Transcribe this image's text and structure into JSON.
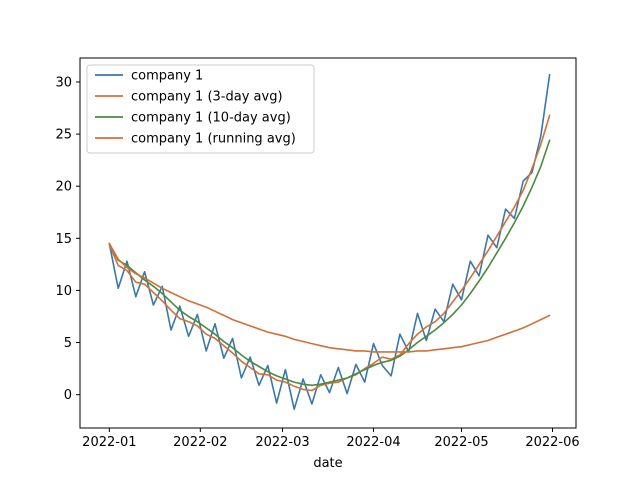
{
  "chart_data": {
    "type": "line",
    "title": "",
    "xlabel": "date",
    "ylabel": "",
    "xlim": [
      "2021-12-22",
      "2022-06-09"
    ],
    "ylim": [
      -3.2,
      32.3
    ],
    "x_ticks": [
      {
        "date": "2022-01-01",
        "label": "2022-01"
      },
      {
        "date": "2022-02-01",
        "label": "2022-02"
      },
      {
        "date": "2022-03-01",
        "label": "2022-03"
      },
      {
        "date": "2022-04-01",
        "label": "2022-04"
      },
      {
        "date": "2022-05-01",
        "label": "2022-05"
      },
      {
        "date": "2022-06-01",
        "label": "2022-06"
      }
    ],
    "y_ticks": [
      0,
      5,
      10,
      15,
      20,
      25,
      30
    ],
    "grid": false,
    "legend_position": "top-left",
    "series": [
      {
        "name": "company 1",
        "color": "#3a78a8",
        "x": [
          "2022-01-01",
          "2022-01-04",
          "2022-01-07",
          "2022-01-10",
          "2022-01-13",
          "2022-01-16",
          "2022-01-19",
          "2022-01-22",
          "2022-01-25",
          "2022-01-28",
          "2022-01-31",
          "2022-02-03",
          "2022-02-06",
          "2022-02-09",
          "2022-02-12",
          "2022-02-15",
          "2022-02-18",
          "2022-02-21",
          "2022-02-24",
          "2022-02-27",
          "2022-03-02",
          "2022-03-05",
          "2022-03-08",
          "2022-03-11",
          "2022-03-14",
          "2022-03-17",
          "2022-03-20",
          "2022-03-23",
          "2022-03-26",
          "2022-03-29",
          "2022-04-01",
          "2022-04-04",
          "2022-04-07",
          "2022-04-10",
          "2022-04-13",
          "2022-04-16",
          "2022-04-19",
          "2022-04-22",
          "2022-04-25",
          "2022-04-28",
          "2022-05-01",
          "2022-05-04",
          "2022-05-07",
          "2022-05-10",
          "2022-05-13",
          "2022-05-16",
          "2022-05-19",
          "2022-05-22",
          "2022-05-25",
          "2022-05-28",
          "2022-05-31"
        ],
        "values": [
          14.5,
          10.2,
          12.8,
          9.4,
          11.8,
          8.6,
          10.4,
          6.2,
          8.5,
          5.6,
          7.7,
          4.2,
          6.8,
          3.5,
          5.4,
          1.6,
          3.6,
          0.9,
          2.8,
          -0.8,
          2.4,
          -1.4,
          1.5,
          -0.9,
          1.9,
          0.2,
          2.6,
          0.1,
          2.9,
          1.2,
          4.9,
          2.8,
          1.8,
          5.8,
          4.1,
          7.8,
          5.2,
          8.2,
          7.0,
          10.6,
          9.1,
          12.8,
          11.4,
          15.3,
          14.1,
          17.8,
          16.9,
          20.5,
          21.3,
          24.8,
          30.7
        ]
      },
      {
        "name": "company 1 (3-day avg)",
        "color": "#d2703a",
        "x": [
          "2022-01-01",
          "2022-01-04",
          "2022-01-07",
          "2022-01-10",
          "2022-01-13",
          "2022-01-16",
          "2022-01-19",
          "2022-01-22",
          "2022-01-25",
          "2022-01-28",
          "2022-01-31",
          "2022-02-03",
          "2022-02-06",
          "2022-02-09",
          "2022-02-12",
          "2022-02-15",
          "2022-02-18",
          "2022-02-21",
          "2022-02-24",
          "2022-02-27",
          "2022-03-02",
          "2022-03-05",
          "2022-03-08",
          "2022-03-11",
          "2022-03-14",
          "2022-03-17",
          "2022-03-20",
          "2022-03-23",
          "2022-03-26",
          "2022-03-29",
          "2022-04-01",
          "2022-04-04",
          "2022-04-07",
          "2022-04-10",
          "2022-04-13",
          "2022-04-16",
          "2022-04-19",
          "2022-04-22",
          "2022-04-25",
          "2022-04-28",
          "2022-05-01",
          "2022-05-04",
          "2022-05-07",
          "2022-05-10",
          "2022-05-13",
          "2022-05-16",
          "2022-05-19",
          "2022-05-22",
          "2022-05-25",
          "2022-05-28",
          "2022-05-31"
        ],
        "values": [
          14.4,
          12.4,
          11.9,
          10.8,
          10.6,
          9.8,
          9.0,
          8.1,
          7.3,
          7.0,
          6.6,
          5.8,
          5.4,
          4.7,
          4.0,
          3.2,
          2.6,
          2.0,
          1.9,
          1.4,
          1.2,
          0.8,
          0.5,
          0.4,
          0.9,
          1.1,
          1.2,
          1.6,
          1.9,
          2.5,
          3.0,
          3.6,
          3.4,
          3.8,
          4.9,
          5.8,
          6.5,
          7.0,
          7.8,
          8.9,
          10.0,
          11.2,
          12.5,
          13.8,
          15.2,
          16.6,
          18.0,
          19.6,
          21.7,
          24.0,
          26.8
        ]
      },
      {
        "name": "company 1 (10-day avg)",
        "color": "#4b8a3e",
        "x": [
          "2022-01-01",
          "2022-01-04",
          "2022-01-07",
          "2022-01-10",
          "2022-01-13",
          "2022-01-16",
          "2022-01-19",
          "2022-01-22",
          "2022-01-25",
          "2022-01-28",
          "2022-01-31",
          "2022-02-03",
          "2022-02-06",
          "2022-02-09",
          "2022-02-12",
          "2022-02-15",
          "2022-02-18",
          "2022-02-21",
          "2022-02-24",
          "2022-02-27",
          "2022-03-02",
          "2022-03-05",
          "2022-03-08",
          "2022-03-11",
          "2022-03-14",
          "2022-03-17",
          "2022-03-20",
          "2022-03-23",
          "2022-03-26",
          "2022-03-29",
          "2022-04-01",
          "2022-04-04",
          "2022-04-07",
          "2022-04-10",
          "2022-04-13",
          "2022-04-16",
          "2022-04-19",
          "2022-04-22",
          "2022-04-25",
          "2022-04-28",
          "2022-05-01",
          "2022-05-04",
          "2022-05-07",
          "2022-05-10",
          "2022-05-13",
          "2022-05-16",
          "2022-05-19",
          "2022-05-22",
          "2022-05-25",
          "2022-05-28",
          "2022-05-31"
        ],
        "values": [
          14.5,
          12.9,
          12.4,
          11.7,
          11.0,
          10.4,
          9.7,
          8.9,
          8.1,
          7.5,
          7.0,
          6.4,
          5.8,
          5.1,
          4.5,
          3.8,
          3.2,
          2.7,
          2.2,
          1.8,
          1.5,
          1.2,
          1.0,
          0.9,
          1.0,
          1.2,
          1.4,
          1.6,
          2.0,
          2.4,
          2.8,
          3.1,
          3.3,
          3.7,
          4.3,
          5.0,
          5.6,
          6.2,
          6.9,
          7.7,
          8.6,
          9.7,
          10.9,
          12.2,
          13.6,
          15.0,
          16.5,
          18.1,
          19.9,
          21.9,
          24.4
        ]
      },
      {
        "name": "company 1 (running avg)",
        "color": "#d2703a",
        "x": [
          "2022-01-01",
          "2022-01-04",
          "2022-01-07",
          "2022-01-10",
          "2022-01-13",
          "2022-01-16",
          "2022-01-19",
          "2022-01-22",
          "2022-01-25",
          "2022-01-28",
          "2022-01-31",
          "2022-02-03",
          "2022-02-06",
          "2022-02-09",
          "2022-02-12",
          "2022-02-15",
          "2022-02-18",
          "2022-02-21",
          "2022-02-24",
          "2022-02-27",
          "2022-03-02",
          "2022-03-05",
          "2022-03-08",
          "2022-03-11",
          "2022-03-14",
          "2022-03-17",
          "2022-03-20",
          "2022-03-23",
          "2022-03-26",
          "2022-03-29",
          "2022-04-01",
          "2022-04-04",
          "2022-04-07",
          "2022-04-10",
          "2022-04-13",
          "2022-04-16",
          "2022-04-19",
          "2022-04-22",
          "2022-04-25",
          "2022-04-28",
          "2022-05-01",
          "2022-05-04",
          "2022-05-07",
          "2022-05-10",
          "2022-05-13",
          "2022-05-16",
          "2022-05-19",
          "2022-05-22",
          "2022-05-25",
          "2022-05-28",
          "2022-05-31"
        ],
        "values": [
          14.5,
          13.0,
          12.2,
          11.6,
          11.2,
          10.7,
          10.2,
          9.8,
          9.4,
          9.0,
          8.7,
          8.4,
          8.0,
          7.6,
          7.2,
          6.9,
          6.6,
          6.3,
          6.0,
          5.8,
          5.6,
          5.3,
          5.1,
          4.9,
          4.7,
          4.5,
          4.4,
          4.3,
          4.2,
          4.2,
          4.1,
          4.1,
          4.1,
          4.1,
          4.1,
          4.2,
          4.2,
          4.3,
          4.4,
          4.5,
          4.6,
          4.8,
          5.0,
          5.2,
          5.5,
          5.8,
          6.1,
          6.4,
          6.8,
          7.2,
          7.6
        ]
      }
    ]
  }
}
